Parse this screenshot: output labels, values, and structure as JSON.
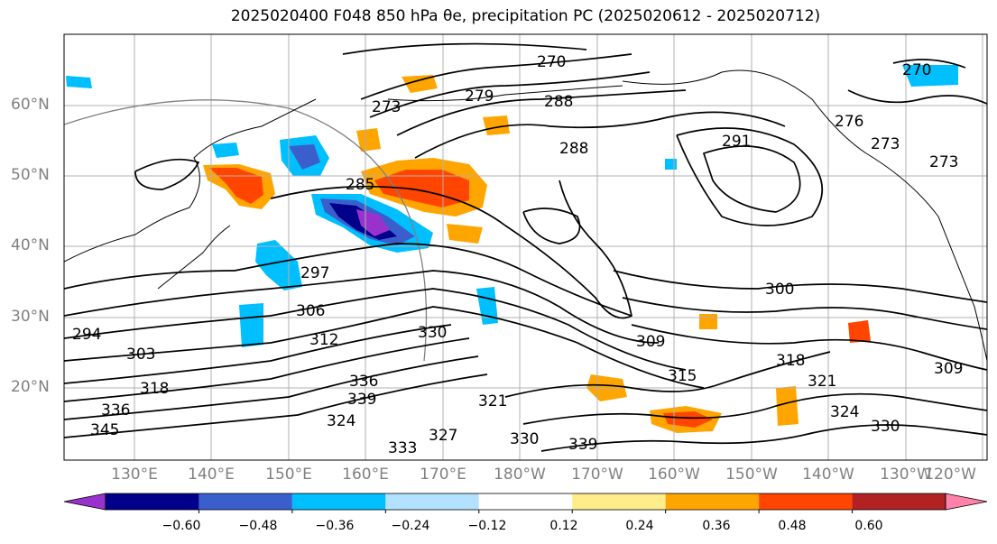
{
  "title": "2025020400 F048 850 hPa θe, precipitation PC (2025020612 - 2025020712)",
  "lat_labels": [
    "60°N",
    "50°N",
    "40°N",
    "30°N",
    "20°N"
  ],
  "lon_labels": [
    "130°E",
    "140°E",
    "150°E",
    "160°E",
    "170°E",
    "180°W",
    "170°W",
    "160°W",
    "150°W",
    "140°W",
    "130°W",
    "120°W"
  ],
  "colorbar": {
    "ticks": [
      "−0.60",
      "−0.48",
      "−0.36",
      "−0.24",
      "−0.12",
      "0.12",
      "0.24",
      "0.36",
      "0.48",
      "0.60"
    ],
    "colors": [
      "#9932cc",
      "#00008b",
      "#3a5fcd",
      "#00bfff",
      "#b2e2ff",
      "#ffffff",
      "#ffec8b",
      "#ffa500",
      "#ff4500",
      "#b22222",
      "#ff82ab"
    ]
  },
  "contour_labels": [
    "270",
    "273",
    "279",
    "288",
    "288",
    "291",
    "285",
    "297",
    "306",
    "303",
    "294",
    "312",
    "318",
    "330",
    "336",
    "339",
    "333",
    "324",
    "321",
    "327",
    "330",
    "309",
    "315",
    "318",
    "300",
    "321",
    "324",
    "330",
    "309",
    "276",
    "273",
    "273",
    "270",
    "345",
    "336",
    "339"
  ]
}
